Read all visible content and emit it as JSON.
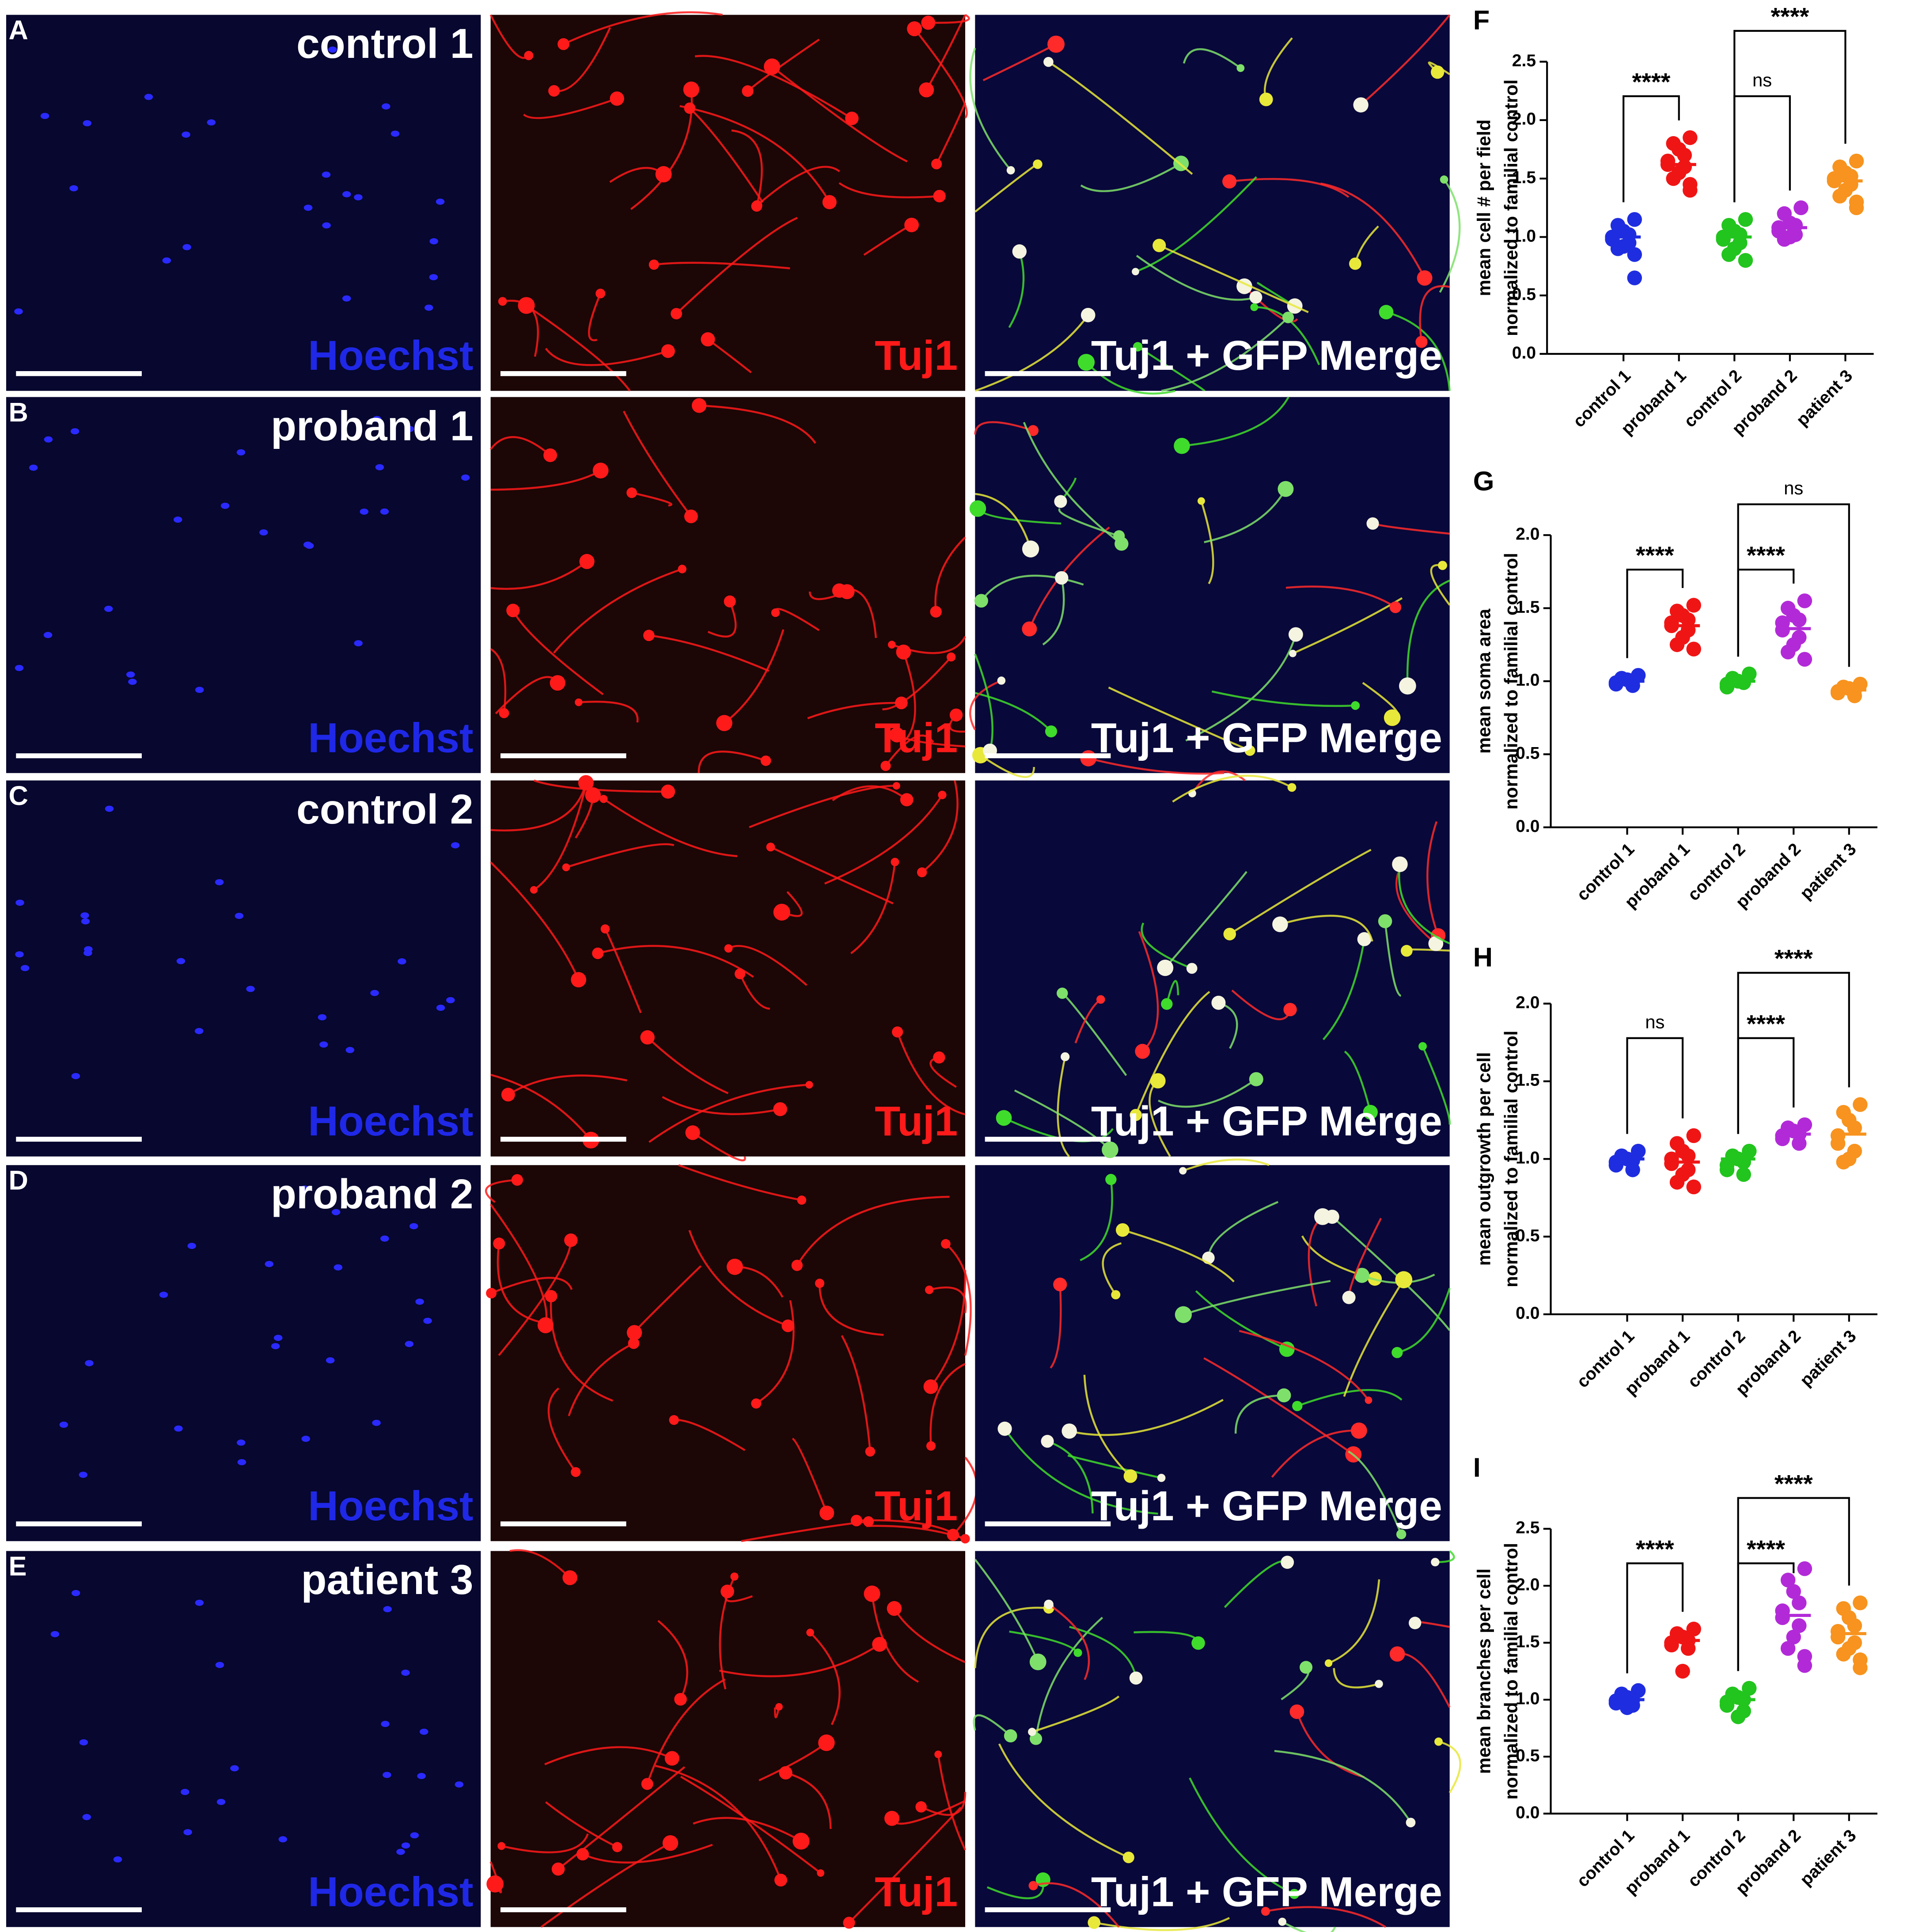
{
  "panels": [
    {
      "letter": "A",
      "sample": "control 1"
    },
    {
      "letter": "B",
      "sample": "proband 1"
    },
    {
      "letter": "C",
      "sample": "control 2"
    },
    {
      "letter": "D",
      "sample": "proband 2"
    },
    {
      "letter": "E",
      "sample": "patient 3"
    }
  ],
  "stain_labels": [
    "Hoechst",
    "Tuj1",
    "Tuj1 + GFP Merge"
  ],
  "chart_data": [
    {
      "type": "strip",
      "panel": "F",
      "ylabel": [
        "mean cell # per field",
        "normalized to familial control"
      ],
      "categories": [
        "control 1",
        "proband 1",
        "control 2",
        "proband 2",
        "patient 3"
      ],
      "colors": [
        "#1f2de0",
        "#f01515",
        "#22c41e",
        "#b22ad8",
        "#f7931e"
      ],
      "values": [
        [
          1.15,
          1.1,
          1.05,
          1.02,
          1.0,
          0.98,
          0.95,
          0.92,
          0.9,
          0.85,
          0.65
        ],
        [
          1.85,
          1.8,
          1.75,
          1.7,
          1.65,
          1.62,
          1.6,
          1.55,
          1.5,
          1.45,
          1.4
        ],
        [
          1.15,
          1.1,
          1.05,
          1.02,
          1.0,
          0.98,
          0.95,
          0.9,
          0.85,
          0.8
        ],
        [
          1.25,
          1.2,
          1.12,
          1.1,
          1.08,
          1.05,
          1.02,
          1.0,
          0.98
        ],
        [
          1.65,
          1.6,
          1.55,
          1.52,
          1.5,
          1.48,
          1.45,
          1.4,
          1.35,
          1.3,
          1.25
        ]
      ],
      "means": [
        1.0,
        1.62,
        1.0,
        1.08,
        1.48
      ],
      "comparisons": [
        {
          "pair": [
            0,
            1
          ],
          "label": "****"
        },
        {
          "pair": [
            2,
            3
          ],
          "label": "ns"
        },
        {
          "pair": [
            2,
            4
          ],
          "label": "****"
        }
      ],
      "ylim": [
        0,
        2.5
      ],
      "yticks": [
        {
          "value": 0,
          "label": "0.0"
        },
        0.5,
        {
          "value": 1,
          "label": "1.0"
        },
        1.5,
        {
          "value": 2,
          "label": "2.0"
        },
        2.5
      ]
    },
    {
      "type": "strip",
      "panel": "G",
      "ylabel": [
        "mean soma area",
        "normalized to familial control"
      ],
      "categories": [
        "control 1",
        "proband 1",
        "control 2",
        "proband 2",
        "patient 3"
      ],
      "colors": [
        "#1f2de0",
        "#f01515",
        "#22c41e",
        "#b22ad8",
        "#f7931e"
      ],
      "values": [
        [
          1.04,
          1.02,
          1.01,
          1.0,
          0.99,
          0.98,
          0.97
        ],
        [
          1.52,
          1.48,
          1.45,
          1.42,
          1.4,
          1.38,
          1.35,
          1.3,
          1.25,
          1.22
        ],
        [
          1.05,
          1.02,
          1.0,
          0.99,
          0.98,
          0.96
        ],
        [
          1.55,
          1.5,
          1.45,
          1.42,
          1.4,
          1.35,
          1.3,
          1.25,
          1.2,
          1.15
        ],
        [
          0.98,
          0.96,
          0.95,
          0.94,
          0.93,
          0.92,
          0.9
        ]
      ],
      "means": [
        1.0,
        1.38,
        1.0,
        1.36,
        0.94
      ],
      "comparisons": [
        {
          "pair": [
            0,
            1
          ],
          "label": "****"
        },
        {
          "pair": [
            2,
            3
          ],
          "label": "****"
        },
        {
          "pair": [
            2,
            4
          ],
          "label": "ns"
        }
      ],
      "ylim": [
        0,
        2
      ],
      "yticks": [
        {
          "value": 0,
          "label": "0.0"
        },
        0.5,
        {
          "value": 1,
          "label": "1.0"
        },
        1.5,
        {
          "value": 2,
          "label": "2.0"
        }
      ]
    },
    {
      "type": "strip",
      "panel": "H",
      "ylabel": [
        "mean outgrowth per cell",
        "normalized to familial control"
      ],
      "categories": [
        "control 1",
        "proband 1",
        "control 2",
        "proband 2",
        "patient 3"
      ],
      "colors": [
        "#1f2de0",
        "#f01515",
        "#22c41e",
        "#b22ad8",
        "#f7931e"
      ],
      "values": [
        [
          1.05,
          1.02,
          1.0,
          0.99,
          0.98,
          0.96,
          0.93
        ],
        [
          1.15,
          1.1,
          1.05,
          1.02,
          1.0,
          0.97,
          0.93,
          0.9,
          0.85,
          0.82
        ],
        [
          1.05,
          1.02,
          1.0,
          0.98,
          0.96,
          0.93,
          0.9
        ],
        [
          1.22,
          1.2,
          1.18,
          1.16,
          1.15,
          1.13,
          1.1
        ],
        [
          1.35,
          1.3,
          1.25,
          1.2,
          1.15,
          1.1,
          1.05,
          1.0,
          0.98
        ]
      ],
      "means": [
        1.0,
        0.98,
        1.0,
        1.16,
        1.16
      ],
      "comparisons": [
        {
          "pair": [
            0,
            1
          ],
          "label": "ns"
        },
        {
          "pair": [
            2,
            3
          ],
          "label": "****"
        },
        {
          "pair": [
            2,
            4
          ],
          "label": "****"
        }
      ],
      "ylim": [
        0,
        2
      ],
      "yticks": [
        {
          "value": 0,
          "label": "0.0"
        },
        0.5,
        {
          "value": 1,
          "label": "1.0"
        },
        1.5,
        {
          "value": 2,
          "label": "2.0"
        }
      ]
    },
    {
      "type": "strip",
      "panel": "I",
      "ylabel": [
        "mean branches per cell",
        "normalized to familial control"
      ],
      "categories": [
        "control 1",
        "proband 1",
        "control 2",
        "proband 2",
        "patient 3"
      ],
      "colors": [
        "#1f2de0",
        "#f01515",
        "#22c41e",
        "#b22ad8",
        "#f7931e"
      ],
      "values": [
        [
          1.08,
          1.05,
          1.02,
          1.0,
          0.99,
          0.97,
          0.95,
          0.93
        ],
        [
          1.62,
          1.58,
          1.55,
          1.52,
          1.5,
          1.48,
          1.45,
          1.25
        ],
        [
          1.1,
          1.05,
          1.02,
          1.0,
          0.98,
          0.95,
          0.9,
          0.85
        ],
        [
          2.15,
          2.05,
          1.95,
          1.85,
          1.78,
          1.72,
          1.65,
          1.55,
          1.45,
          1.38,
          1.3
        ],
        [
          1.85,
          1.8,
          1.72,
          1.65,
          1.6,
          1.55,
          1.5,
          1.45,
          1.4,
          1.35,
          1.28
        ]
      ],
      "means": [
        1.0,
        1.52,
        1.0,
        1.74,
        1.58
      ],
      "comparisons": [
        {
          "pair": [
            0,
            1
          ],
          "label": "****"
        },
        {
          "pair": [
            2,
            3
          ],
          "label": "****"
        },
        {
          "pair": [
            2,
            4
          ],
          "label": "****"
        }
      ],
      "ylim": [
        0,
        2.5
      ],
      "yticks": [
        {
          "value": 0,
          "label": "0.0"
        },
        0.5,
        {
          "value": 1,
          "label": "1.0"
        },
        1.5,
        {
          "value": 2,
          "label": "2.0"
        },
        2.5
      ]
    }
  ]
}
